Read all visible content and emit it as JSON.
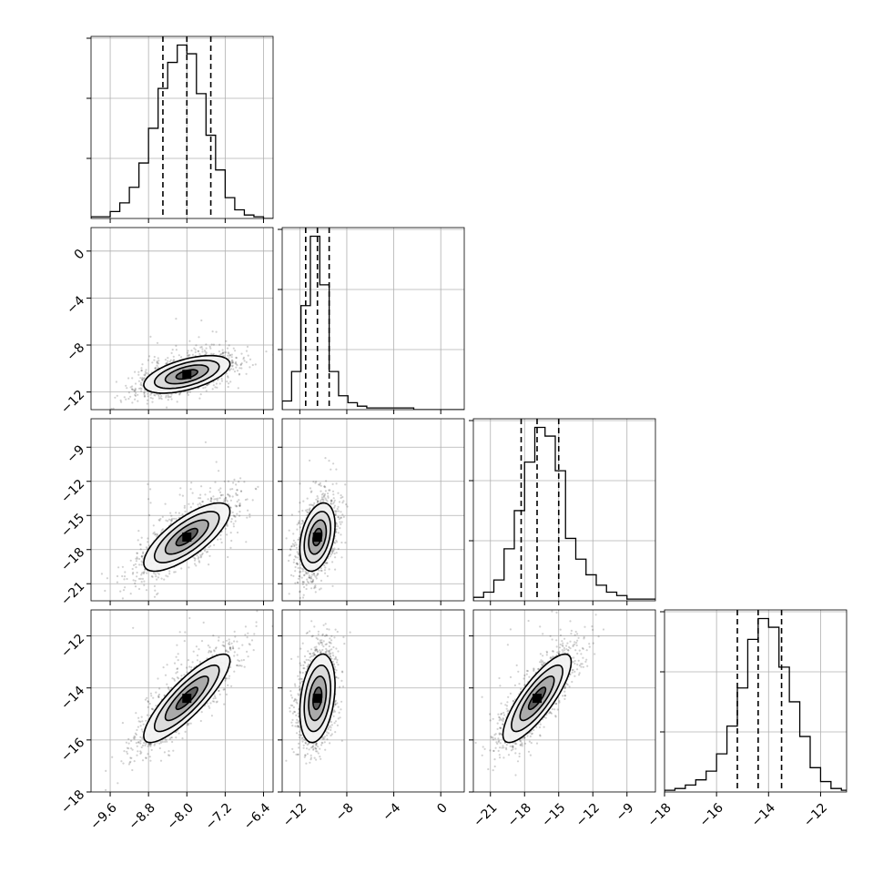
{
  "chart_data": {
    "type": "corner",
    "parameters": 4,
    "axes": [
      {
        "range": [
          -10.0,
          -6.2
        ],
        "ticks": [
          "−9.6",
          "−8.8",
          "−8.0",
          "−7.2",
          "−6.4"
        ],
        "tick_values": [
          -9.6,
          -8.8,
          -8.0,
          -7.2,
          -6.4
        ]
      },
      {
        "range": [
          -13.5,
          2.0
        ],
        "ticks": [
          "−12",
          "−8",
          "−4",
          "0"
        ],
        "tick_values": [
          -12,
          -8,
          -4,
          0
        ]
      },
      {
        "range": [
          -22.5,
          -6.5
        ],
        "ticks": [
          "−21",
          "−18",
          "−15",
          "−12",
          "−9"
        ],
        "tick_values": [
          -21,
          -18,
          -15,
          -12,
          -9
        ]
      },
      {
        "range": [
          -18.0,
          -11.0
        ],
        "ticks": [
          "−18",
          "−16",
          "−14",
          "−12"
        ],
        "tick_values": [
          -18,
          -16,
          -14,
          -12
        ]
      }
    ],
    "quantiles": [
      [
        -8.5,
        -8.0,
        -7.5
      ],
      [
        -11.5,
        -10.5,
        -9.5
      ],
      [
        -18.3,
        -16.9,
        -15.0
      ],
      [
        -15.2,
        -14.4,
        -13.5
      ]
    ],
    "histograms": [
      {
        "edges": [
          -10.0,
          -9.8,
          -9.6,
          -9.4,
          -9.2,
          -9.0,
          -8.8,
          -8.6,
          -8.4,
          -8.2,
          -8.0,
          -7.8,
          -7.6,
          -7.4,
          -7.2,
          -7.0,
          -6.8,
          -6.6,
          -6.4,
          -6.2
        ],
        "counts": [
          1,
          1,
          4,
          9,
          18,
          32,
          52,
          75,
          90,
          100,
          95,
          72,
          48,
          28,
          12,
          5,
          2,
          1,
          0
        ]
      },
      {
        "edges": [
          -13.5,
          -12.7,
          -11.9,
          -11.1,
          -10.3,
          -9.5,
          -8.7,
          -7.9,
          -7.1,
          -6.3,
          -5.5,
          -4.7,
          -3.9,
          -3.1,
          -2.3,
          -1.5,
          -0.7,
          0.1,
          0.9,
          2.0
        ],
        "counts": [
          5,
          22,
          60,
          100,
          72,
          22,
          8,
          4,
          2,
          1,
          1,
          1,
          1,
          1,
          0,
          0,
          0,
          0,
          0
        ]
      },
      {
        "edges": [
          -22.5,
          -21.6,
          -20.7,
          -19.8,
          -18.9,
          -18.0,
          -17.1,
          -16.2,
          -15.3,
          -14.4,
          -13.5,
          -12.6,
          -11.7,
          -10.8,
          -9.9,
          -9.0,
          -8.1,
          -7.2,
          -6.5
        ],
        "counts": [
          2,
          5,
          12,
          30,
          52,
          80,
          100,
          95,
          75,
          36,
          24,
          15,
          9,
          5,
          3,
          1,
          1,
          1
        ]
      },
      {
        "edges": [
          -18.0,
          -17.6,
          -17.2,
          -16.8,
          -16.4,
          -16.0,
          -15.6,
          -15.2,
          -14.8,
          -14.4,
          -14.0,
          -13.6,
          -13.2,
          -12.8,
          -12.4,
          -12.0,
          -11.6,
          -11.2,
          -11.0
        ],
        "counts": [
          1,
          2,
          4,
          7,
          12,
          22,
          38,
          60,
          88,
          100,
          95,
          72,
          52,
          32,
          14,
          6,
          2,
          1
        ]
      }
    ],
    "pairs": [
      {
        "i": 1,
        "j": 0,
        "mean": [
          -8.0,
          -10.5
        ],
        "sd": [
          0.45,
          0.8
        ],
        "corr": 0.55
      },
      {
        "i": 2,
        "j": 0,
        "mean": [
          -8.0,
          -16.9
        ],
        "sd": [
          0.45,
          1.5
        ],
        "corr": 0.75
      },
      {
        "i": 2,
        "j": 1,
        "mean": [
          -10.5,
          -16.9
        ],
        "sd": [
          0.75,
          1.5
        ],
        "corr": 0.35
      },
      {
        "i": 3,
        "j": 0,
        "mean": [
          -8.0,
          -14.4
        ],
        "sd": [
          0.45,
          0.85
        ],
        "corr": 0.85
      },
      {
        "i": 3,
        "j": 1,
        "mean": [
          -10.5,
          -14.4
        ],
        "sd": [
          0.75,
          0.85
        ],
        "corr": 0.3
      },
      {
        "i": 3,
        "j": 2,
        "mean": [
          -16.9,
          -14.4
        ],
        "sd": [
          1.5,
          0.85
        ],
        "corr": 0.82
      }
    ],
    "contour_levels_sigma": [
      0.5,
      1.0,
      1.5,
      2.0
    ],
    "grid": true,
    "xlabel": "",
    "ylabel": "",
    "title": ""
  }
}
